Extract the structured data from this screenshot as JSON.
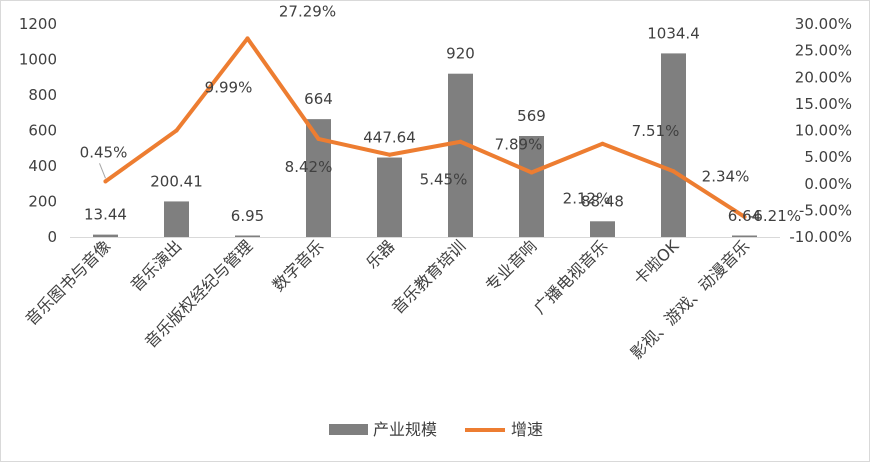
{
  "chart_data": {
    "type": "bar+line",
    "categories": [
      "音乐图书与音像",
      "音乐演出",
      "音乐版权经纪与管理",
      "数字音乐",
      "乐器",
      "音乐教育培训",
      "专业音响",
      "广播电视音乐",
      "卡啦OK",
      "影视、游戏、动漫音乐"
    ],
    "series": [
      {
        "name": "产业规模",
        "kind": "bar",
        "axis": "left",
        "values": [
          13.44,
          200.41,
          6.95,
          664,
          447.64,
          920,
          569,
          88.48,
          1034.4,
          6.64
        ],
        "labels": [
          "13.44",
          "200.41",
          "6.95",
          "664",
          "447.64",
          "920",
          "569",
          "88.48",
          "1034.4",
          "6.64"
        ],
        "color": "#7f7f7f"
      },
      {
        "name": "增速",
        "kind": "line",
        "axis": "right",
        "values": [
          0.45,
          9.99,
          27.29,
          8.42,
          5.45,
          7.89,
          2.12,
          7.51,
          2.34,
          -6.21
        ],
        "labels": [
          "0.45%",
          "9.99%",
          "27.29%",
          "8.42%",
          "5.45%",
          "7.89%",
          "2.12%",
          "7.51%",
          "2.34%",
          "-6.21%"
        ],
        "color": "#ed7d31"
      }
    ],
    "y_left": {
      "min": 0,
      "max": 1200,
      "step": 200,
      "ticks": [
        "0",
        "200",
        "400",
        "600",
        "800",
        "1000",
        "1200"
      ]
    },
    "y_right": {
      "min": -10,
      "max": 30,
      "step": 5,
      "ticks": [
        "-10.00%",
        "-5.00%",
        "0.00%",
        "5.00%",
        "10.00%",
        "15.00%",
        "20.00%",
        "25.00%",
        "30.00%"
      ]
    },
    "grid": false,
    "legend": {
      "position": "bottom"
    }
  }
}
